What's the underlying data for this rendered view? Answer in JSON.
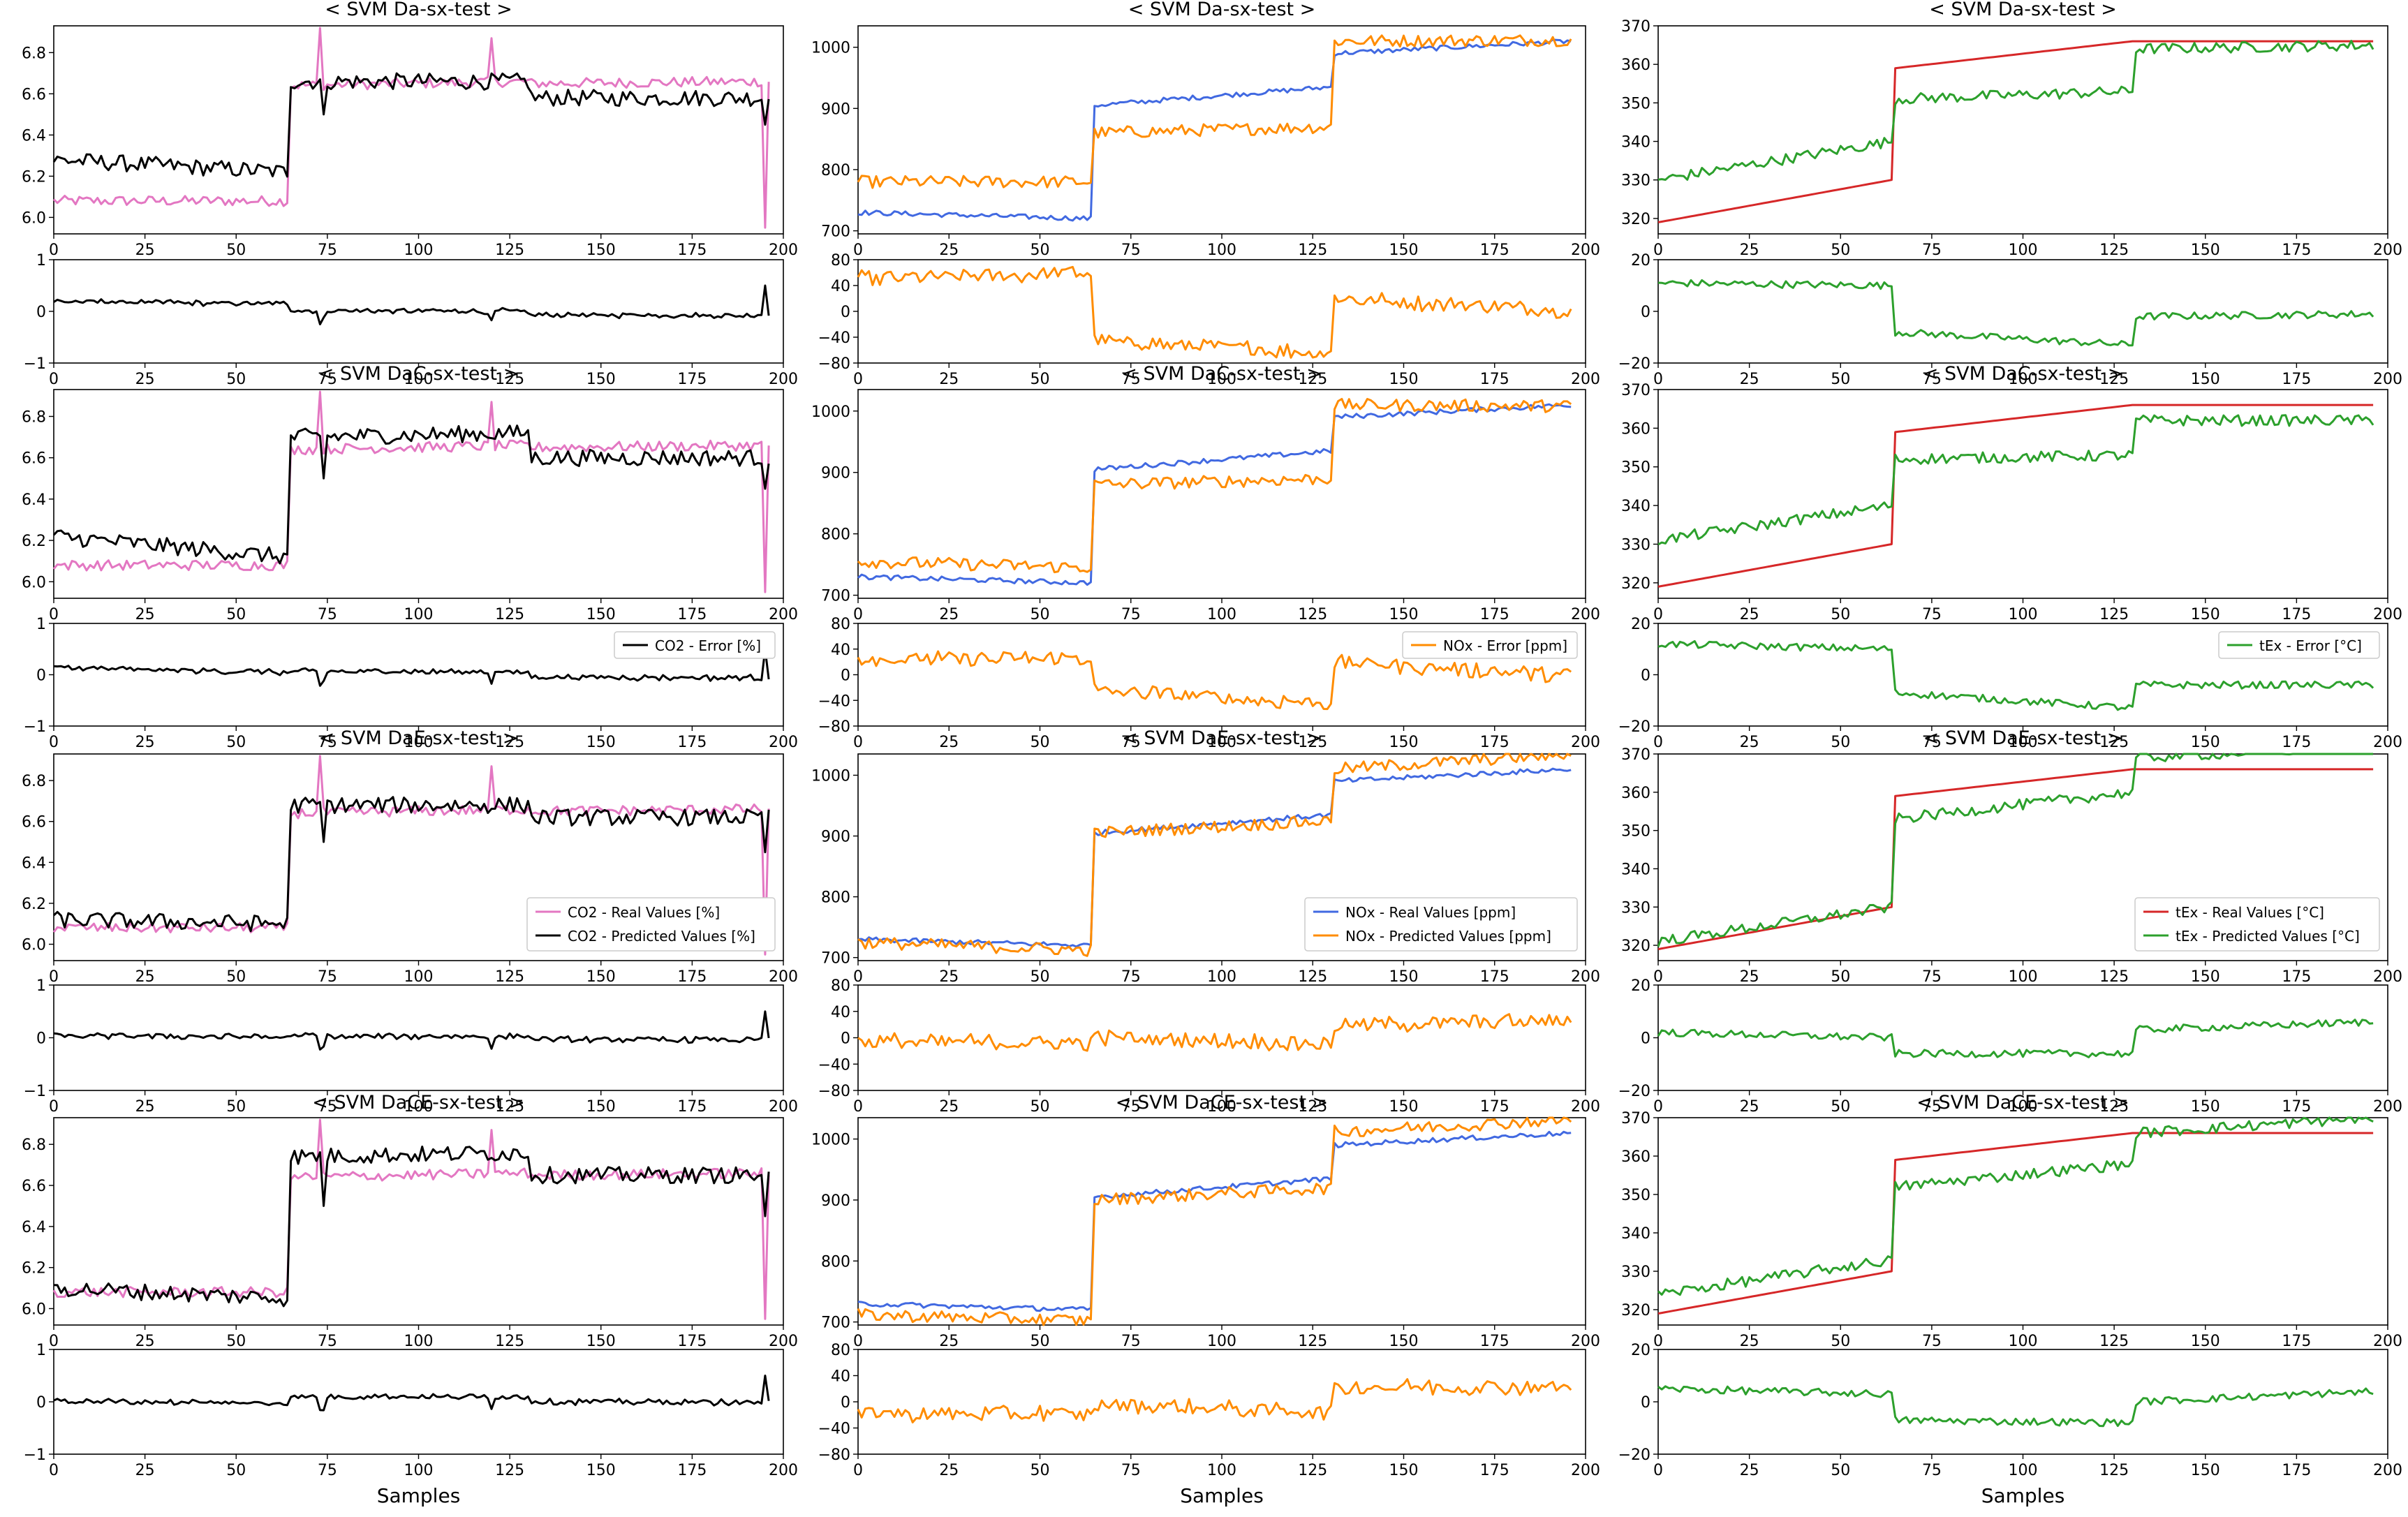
{
  "figure": {
    "xlabel": "Samples",
    "colors": {
      "co2_real": "#e377c2",
      "co2_pred": "#000000",
      "co2_err": "#000000",
      "nox_real": "#4169e1",
      "nox_pred": "#ff8c00",
      "nox_err": "#ff8c00",
      "tex_real": "#d62728",
      "tex_pred": "#2ca02c",
      "tex_err": "#2ca02c"
    }
  },
  "chart_data": {
    "type": "line",
    "x_range": [
      0,
      200
    ],
    "x_ticks": [
      0,
      25,
      50,
      75,
      100,
      125,
      150,
      175,
      200
    ],
    "n_samples": 197,
    "rows": [
      {
        "title": "<  SVM  Da-sx-test  >"
      },
      {
        "title": "<  SVM  DaC-sx-test  >"
      },
      {
        "title": "<  SVM  DaE-sx-test  >"
      },
      {
        "title": "<  SVM  DaCE-sx-test  >"
      }
    ],
    "variables": [
      {
        "name": "CO2",
        "main_ylim": [
          5.92,
          6.93
        ],
        "main_yticks": [
          6.0,
          6.2,
          6.4,
          6.6,
          6.8
        ],
        "main_ytick_labels": [
          "6.0",
          "6.2",
          "6.4",
          "6.6",
          "6.8"
        ],
        "err_ylim": [
          -1,
          1
        ],
        "err_yticks": [
          -1,
          0,
          1
        ],
        "err_ytick_labels": [
          "−1",
          "0",
          "1"
        ],
        "real_label": "CO2 - Real Values [%]",
        "pred_label": "CO2 - Predicted Values [%]",
        "err_label": "CO2 - Error [%]",
        "real_levels": {
          "seg1": [
            6.08,
            6.08
          ],
          "seg2": [
            6.64,
            6.66
          ],
          "seg3": [
            6.65,
            6.66
          ]
        },
        "pred_levels": [
          {
            "seg1": [
              6.28,
              6.22
            ],
            "seg2": [
              6.66,
              6.66
            ],
            "seg3": [
              6.58,
              6.58
            ]
          },
          {
            "seg1": [
              6.22,
              6.12
            ],
            "seg2": [
              6.7,
              6.72
            ],
            "seg3": [
              6.6,
              6.6
            ]
          },
          {
            "seg1": [
              6.12,
              6.1
            ],
            "seg2": [
              6.68,
              6.68
            ],
            "seg3": [
              6.62,
              6.62
            ]
          },
          {
            "seg1": [
              6.1,
              6.05
            ],
            "seg2": [
              6.74,
              6.76
            ],
            "seg3": [
              6.65,
              6.65
            ]
          }
        ]
      },
      {
        "name": "NOx",
        "main_ylim": [
          695,
          1035
        ],
        "main_yticks": [
          700,
          800,
          900,
          1000
        ],
        "main_ytick_labels": [
          "700",
          "800",
          "900",
          "1000"
        ],
        "err_ylim": [
          -80,
          80
        ],
        "err_yticks": [
          -80,
          -40,
          0,
          40,
          80
        ],
        "err_ytick_labels": [
          "−80",
          "−40",
          "0",
          "40",
          "80"
        ],
        "real_label": "NOx - Real Values [ppm]",
        "pred_label": "NOx - Predicted Values [ppm]",
        "err_label": "NOx - Error [ppm]",
        "real_levels": {
          "seg1": [
            730,
            720
          ],
          "seg2": [
            905,
            935
          ],
          "seg3": [
            990,
            1010
          ]
        },
        "pred_levels": [
          {
            "seg1": [
              780,
              780
            ],
            "seg2": [
              860,
              870
            ],
            "seg3": [
              1010,
              1012
            ]
          },
          {
            "seg1": [
              755,
              745
            ],
            "seg2": [
              880,
              890
            ],
            "seg3": [
              1010,
              1008
            ]
          },
          {
            "seg1": [
              725,
              712
            ],
            "seg2": [
              905,
              925
            ],
            "seg3": [
              1010,
              1035
            ]
          },
          {
            "seg1": [
              712,
              702
            ],
            "seg2": [
              900,
              920
            ],
            "seg3": [
              1012,
              1032
            ]
          }
        ]
      },
      {
        "name": "tEx",
        "main_ylim": [
          316,
          370
        ],
        "main_yticks": [
          320,
          330,
          340,
          350,
          360,
          370
        ],
        "main_ytick_labels": [
          "320",
          "330",
          "340",
          "350",
          "360",
          "370"
        ],
        "err_ylim": [
          -20,
          20
        ],
        "err_yticks": [
          -20,
          0,
          20
        ],
        "err_ytick_labels": [
          "−20",
          "0",
          "20"
        ],
        "real_label": "tEx - Real Values [°C]",
        "pred_label": "tEx - Predicted Values [°C]",
        "err_label": "tEx - Error [°C]",
        "real_levels": {
          "seg1": [
            319,
            330
          ],
          "seg2": [
            359,
            366
          ],
          "seg3": [
            366,
            366
          ]
        },
        "pred_levels": [
          {
            "seg1": [
              330,
              340
            ],
            "seg2": [
              351,
              353
            ],
            "seg3": [
              364,
              365
            ]
          },
          {
            "seg1": [
              331,
              340
            ],
            "seg2": [
              352,
              353
            ],
            "seg3": [
              362,
              362
            ]
          },
          {
            "seg1": [
              321,
              330
            ],
            "seg2": [
              353,
              360
            ],
            "seg3": [
              369,
              372
            ]
          },
          {
            "seg1": [
              324,
              333
            ],
            "seg2": [
              352,
              358
            ],
            "seg3": [
              366,
              370
            ]
          }
        ]
      }
    ]
  }
}
